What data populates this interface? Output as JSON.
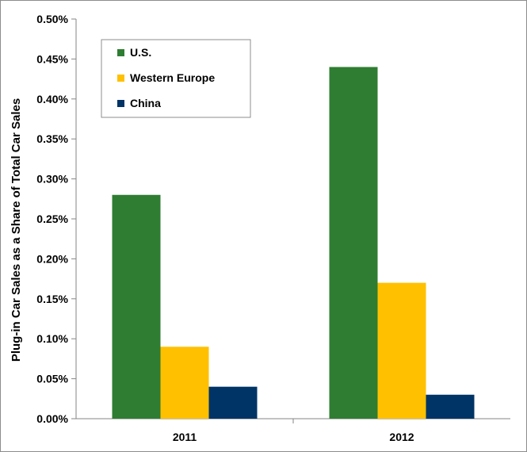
{
  "chart_data": {
    "type": "bar",
    "categories": [
      "2011",
      "2012"
    ],
    "series": [
      {
        "name": "U.S.",
        "values": [
          0.28,
          0.44
        ],
        "color": "#2f7d32"
      },
      {
        "name": "Western Europe",
        "values": [
          0.09,
          0.17
        ],
        "color": "#ffc000"
      },
      {
        "name": "China",
        "values": [
          0.04,
          0.03
        ],
        "color": "#003366"
      }
    ],
    "title": "",
    "xlabel": "",
    "ylabel": "Plug-in Car Sales as a Share of Total Car Sales",
    "ylim": [
      0,
      0.5
    ],
    "y_ticks": [
      "0.00%",
      "0.05%",
      "0.10%",
      "0.15%",
      "0.20%",
      "0.25%",
      "0.30%",
      "0.35%",
      "0.40%",
      "0.45%",
      "0.50%"
    ],
    "grid": false,
    "legend_position": "top-left"
  }
}
